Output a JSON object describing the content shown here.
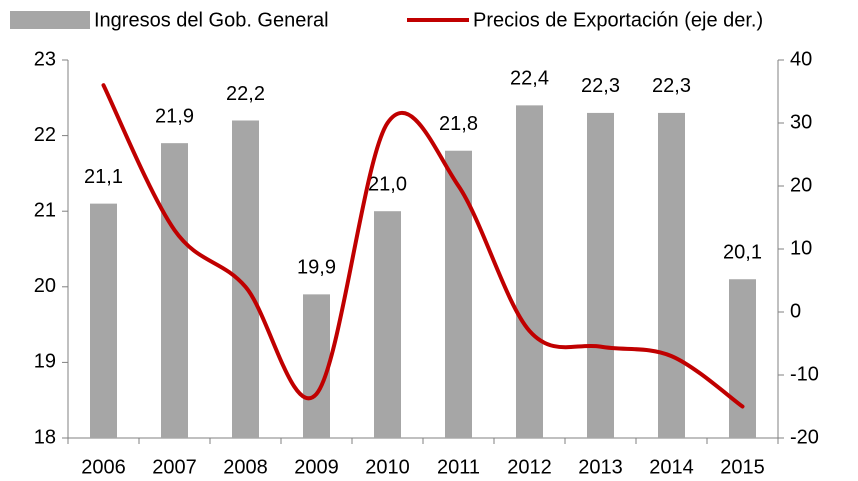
{
  "chart_data": {
    "type": "bar",
    "categories": [
      "2006",
      "2007",
      "2008",
      "2009",
      "2010",
      "2011",
      "2012",
      "2013",
      "2014",
      "2015"
    ],
    "series": [
      {
        "name": "Ingresos del Gob. General",
        "type": "bar",
        "color": "#a6a6a6",
        "values": [
          21.1,
          21.9,
          22.2,
          19.9,
          21.0,
          21.8,
          22.4,
          22.3,
          22.3,
          20.1
        ],
        "value_labels": [
          "21,1",
          "21,9",
          "22,2",
          "19,9",
          "21,0",
          "21,8",
          "22,4",
          "22,3",
          "22,3",
          "20,1"
        ]
      },
      {
        "name": "Precios de Exportación (eje der.)",
        "type": "line",
        "color": "#c00000",
        "axis": "y2",
        "values": [
          36,
          13,
          4,
          -13,
          30,
          20,
          -3,
          -5.5,
          -7,
          -15
        ]
      }
    ],
    "ylim": [
      18,
      23
    ],
    "yticks": [
      18,
      19,
      20,
      21,
      22,
      23
    ],
    "y2lim": [
      -20,
      40
    ],
    "y2ticks": [
      -20,
      -10,
      0,
      10,
      20,
      30,
      40
    ],
    "grid": false,
    "legend": "top"
  }
}
